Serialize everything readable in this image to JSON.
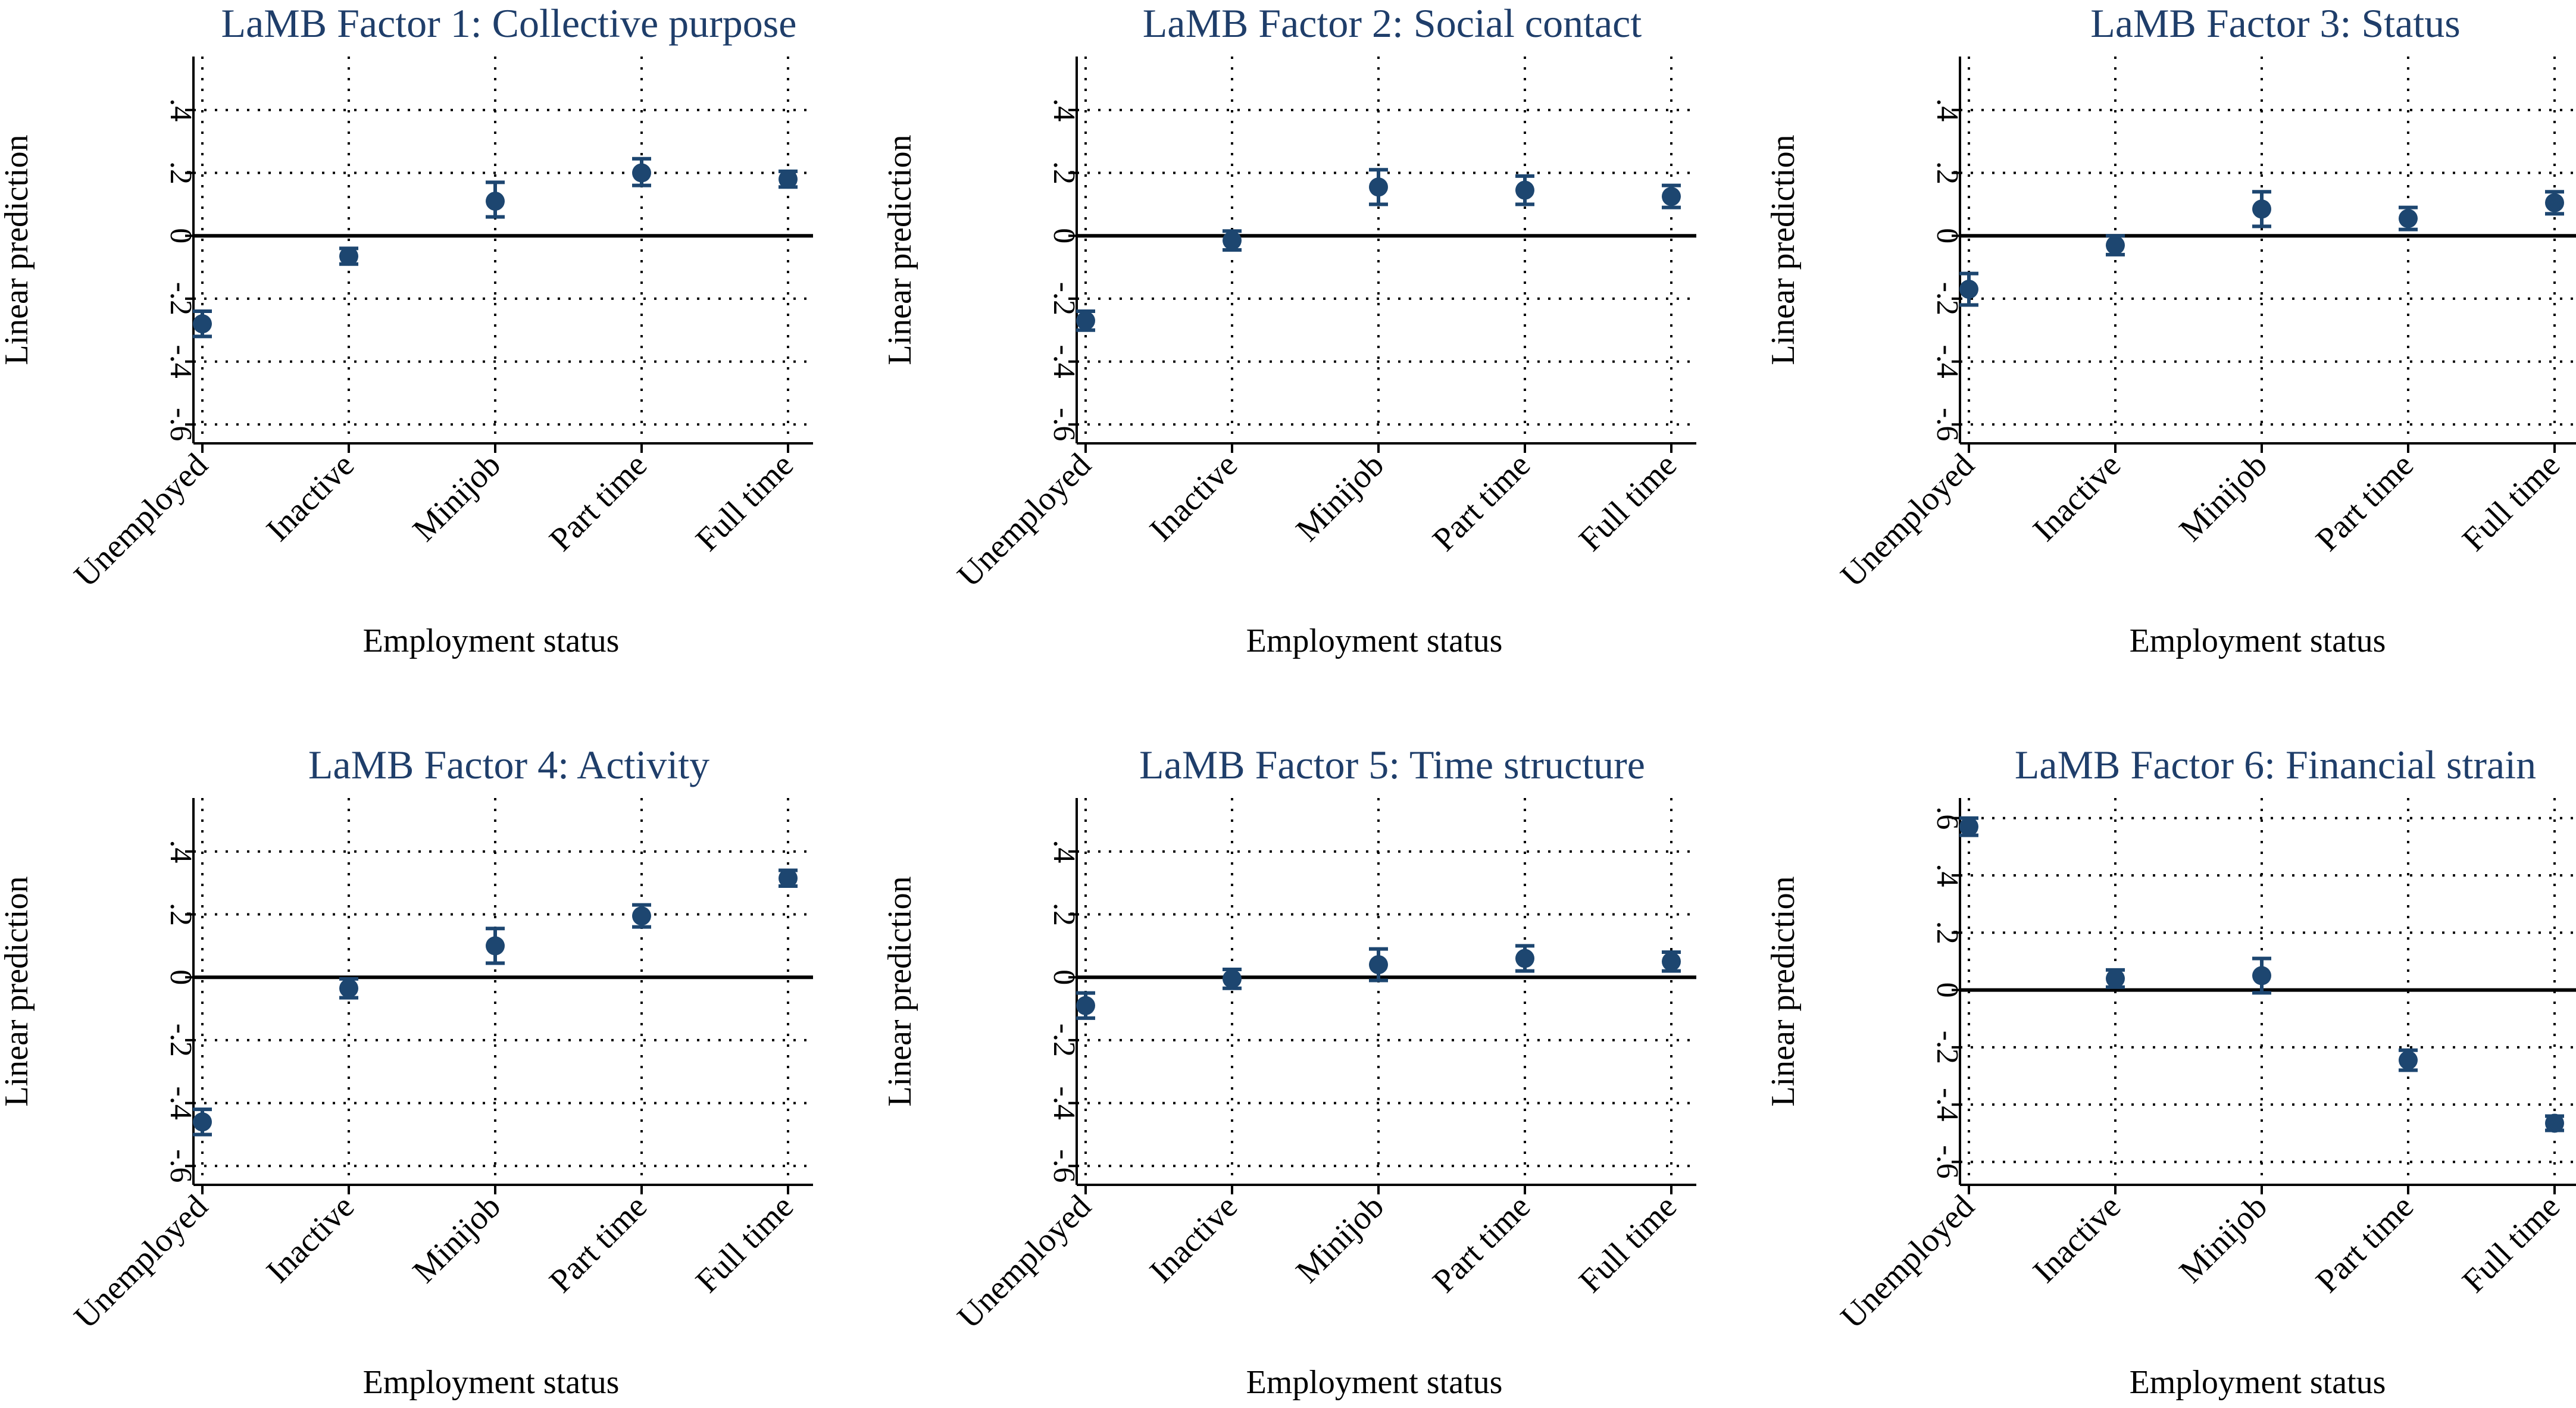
{
  "colors": {
    "title": "#1f3e6a",
    "marker": "#1d4670",
    "axis": "#000000",
    "grid": "#000000"
  },
  "chart_data": [
    {
      "type": "scatter",
      "title": "LaMB Factor 1: Collective purpose",
      "xlabel": "Employment status",
      "ylabel": "Linear prediction",
      "categories": [
        "Unemployed",
        "Inactive",
        "Minijob",
        "Part time",
        "Full time"
      ],
      "values": [
        -0.28,
        -0.065,
        0.11,
        0.2,
        0.18
      ],
      "ci_low": [
        -0.32,
        -0.09,
        0.06,
        0.16,
        0.155
      ],
      "ci_high": [
        -0.24,
        -0.04,
        0.17,
        0.245,
        0.205
      ],
      "ylim": [
        -0.66,
        0.57
      ],
      "yticks": [
        -0.6,
        -0.4,
        -0.2,
        0,
        0.2,
        0.4
      ],
      "ytick_labels": [
        "-.6",
        "-.4",
        "-.2",
        "0",
        ".2",
        ".4"
      ],
      "grid": true
    },
    {
      "type": "scatter",
      "title": "LaMB Factor 2: Social contact",
      "xlabel": "Employment status",
      "ylabel": "Linear prediction",
      "categories": [
        "Unemployed",
        "Inactive",
        "Minijob",
        "Part time",
        "Full time"
      ],
      "values": [
        -0.27,
        -0.015,
        0.155,
        0.145,
        0.125
      ],
      "ci_low": [
        -0.3,
        -0.045,
        0.1,
        0.1,
        0.09
      ],
      "ci_high": [
        -0.24,
        0.015,
        0.21,
        0.19,
        0.16
      ],
      "ylim": [
        -0.66,
        0.57
      ],
      "yticks": [
        -0.6,
        -0.4,
        -0.2,
        0,
        0.2,
        0.4
      ],
      "ytick_labels": [
        "-.6",
        "-.4",
        "-.2",
        "0",
        ".2",
        ".4"
      ],
      "grid": true
    },
    {
      "type": "scatter",
      "title": "LaMB Factor 3: Status",
      "xlabel": "Employment status",
      "ylabel": "Linear prediction",
      "categories": [
        "Unemployed",
        "Inactive",
        "Minijob",
        "Part time",
        "Full time"
      ],
      "values": [
        -0.17,
        -0.03,
        0.085,
        0.055,
        0.105
      ],
      "ci_low": [
        -0.22,
        -0.06,
        0.03,
        0.02,
        0.07
      ],
      "ci_high": [
        -0.12,
        0.0,
        0.14,
        0.09,
        0.14
      ],
      "ylim": [
        -0.66,
        0.57
      ],
      "yticks": [
        -0.6,
        -0.4,
        -0.2,
        0,
        0.2,
        0.4
      ],
      "ytick_labels": [
        "-.6",
        "-.4",
        "-.2",
        "0",
        ".2",
        ".4"
      ],
      "grid": true
    },
    {
      "type": "scatter",
      "title": "LaMB Factor 4: Activity",
      "xlabel": "Employment status",
      "ylabel": "Linear prediction",
      "categories": [
        "Unemployed",
        "Inactive",
        "Minijob",
        "Part time",
        "Full time"
      ],
      "values": [
        -0.46,
        -0.035,
        0.1,
        0.195,
        0.315
      ],
      "ci_low": [
        -0.5,
        -0.065,
        0.045,
        0.16,
        0.29
      ],
      "ci_high": [
        -0.42,
        -0.005,
        0.155,
        0.23,
        0.34
      ],
      "ylim": [
        -0.66,
        0.57
      ],
      "yticks": [
        -0.6,
        -0.4,
        -0.2,
        0,
        0.2,
        0.4
      ],
      "ytick_labels": [
        "-.6",
        "-.4",
        "-.2",
        "0",
        ".2",
        ".4"
      ],
      "grid": true
    },
    {
      "type": "scatter",
      "title": "LaMB Factor 5: Time structure",
      "xlabel": "Employment status",
      "ylabel": "Linear prediction",
      "categories": [
        "Unemployed",
        "Inactive",
        "Minijob",
        "Part time",
        "Full time"
      ],
      "values": [
        -0.09,
        -0.005,
        0.04,
        0.06,
        0.05
      ],
      "ci_low": [
        -0.13,
        -0.035,
        -0.01,
        0.02,
        0.02
      ],
      "ci_high": [
        -0.05,
        0.025,
        0.09,
        0.1,
        0.08
      ],
      "ylim": [
        -0.66,
        0.57
      ],
      "yticks": [
        -0.6,
        -0.4,
        -0.2,
        0,
        0.2,
        0.4
      ],
      "ytick_labels": [
        "-.6",
        "-.4",
        "-.2",
        "0",
        ".2",
        ".4"
      ],
      "grid": true
    },
    {
      "type": "scatter",
      "title": "LaMB Factor 6: Financial strain",
      "xlabel": "Employment status",
      "ylabel": "Linear prediction",
      "categories": [
        "Unemployed",
        "Inactive",
        "Minijob",
        "Part time",
        "Full time"
      ],
      "values": [
        0.57,
        0.04,
        0.05,
        -0.245,
        -0.465
      ],
      "ci_low": [
        0.54,
        0.01,
        -0.01,
        -0.28,
        -0.49
      ],
      "ci_high": [
        0.6,
        0.07,
        0.11,
        -0.21,
        -0.44
      ],
      "ylim": [
        -0.68,
        0.67
      ],
      "yticks": [
        -0.6,
        -0.4,
        -0.2,
        0,
        0.2,
        0.4,
        0.6
      ],
      "ytick_labels": [
        "-.6",
        "-.4",
        "-.2",
        "0",
        ".2",
        ".4",
        ".6"
      ],
      "grid": true
    }
  ]
}
